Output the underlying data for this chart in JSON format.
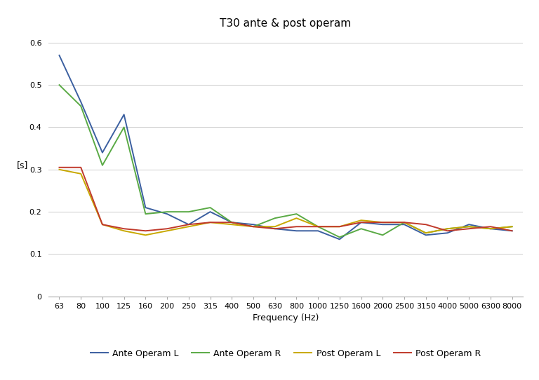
{
  "title": "T30 ante & post operam",
  "xlabel": "Frequency (Hz)",
  "ylabel": "[s]",
  "frequencies": [
    63,
    80,
    100,
    125,
    160,
    200,
    250,
    315,
    400,
    500,
    630,
    800,
    1000,
    1250,
    1600,
    2000,
    2500,
    3150,
    4000,
    5000,
    6300,
    8000
  ],
  "ante_operam_L": [
    0.57,
    0.46,
    0.34,
    0.43,
    0.21,
    0.195,
    0.17,
    0.2,
    0.175,
    0.17,
    0.16,
    0.155,
    0.155,
    0.135,
    0.175,
    0.17,
    0.17,
    0.145,
    0.15,
    0.17,
    0.16,
    0.155
  ],
  "ante_operam_R": [
    0.5,
    0.45,
    0.31,
    0.4,
    0.195,
    0.2,
    0.2,
    0.21,
    0.175,
    0.165,
    0.185,
    0.195,
    0.165,
    0.14,
    0.16,
    0.145,
    0.175,
    0.15,
    0.16,
    0.165,
    0.16,
    0.165
  ],
  "post_operam_L": [
    0.3,
    0.29,
    0.17,
    0.155,
    0.145,
    0.155,
    0.165,
    0.175,
    0.17,
    0.165,
    0.165,
    0.185,
    0.165,
    0.165,
    0.18,
    0.175,
    0.175,
    0.15,
    0.16,
    0.165,
    0.16,
    0.165
  ],
  "post_operam_R": [
    0.305,
    0.305,
    0.17,
    0.16,
    0.155,
    0.16,
    0.17,
    0.175,
    0.175,
    0.165,
    0.16,
    0.165,
    0.165,
    0.165,
    0.175,
    0.175,
    0.175,
    0.17,
    0.155,
    0.16,
    0.165,
    0.155
  ],
  "color_ante_L": "#3b5fa0",
  "color_ante_R": "#5aaa45",
  "color_post_L": "#c8a800",
  "color_post_R": "#c0392b",
  "ylim": [
    0,
    0.62
  ],
  "yticks": [
    0,
    0.1,
    0.2,
    0.3,
    0.4,
    0.5,
    0.6
  ],
  "legend_labels": [
    "Ante Operam L",
    "Ante Operam R",
    "Post Operam L",
    "Post Operam R"
  ],
  "background_color": "#ffffff",
  "grid_color": "#cccccc"
}
